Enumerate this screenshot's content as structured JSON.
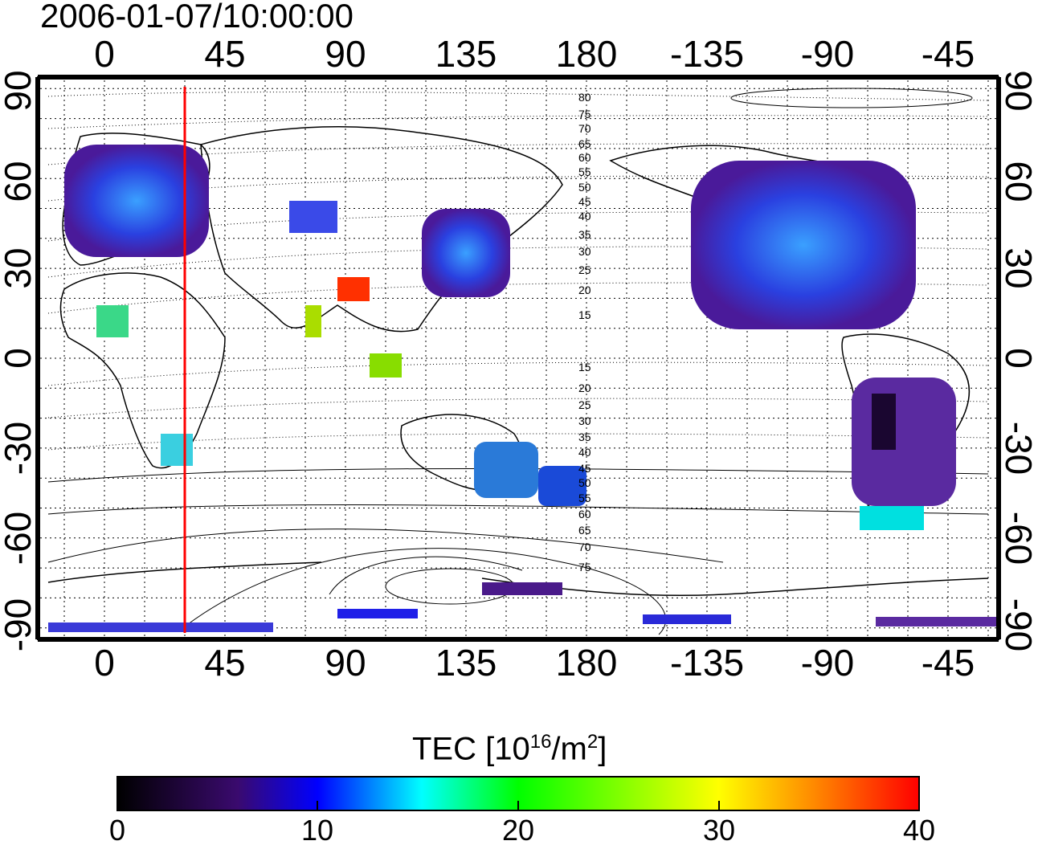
{
  "title": "2006-01-07/10:00:00",
  "map": {
    "top_lon_labels": [
      "0",
      "45",
      "90",
      "135",
      "180",
      "-135",
      "-90",
      "-45"
    ],
    "bottom_lon_labels": [
      "0",
      "45",
      "90",
      "135",
      "180",
      "-135",
      "-90",
      "-45"
    ],
    "left_lat_labels": [
      "90",
      "60",
      "30",
      "0",
      "-30",
      "-60",
      "-90"
    ],
    "right_lat_labels": [
      "90",
      "60",
      "30",
      "0",
      "-30",
      "-60",
      "-90"
    ],
    "contour_labels": [
      "80",
      "75",
      "70",
      "65",
      "60",
      "55",
      "50",
      "45",
      "40",
      "35",
      "30",
      "25",
      "20",
      "15",
      "15",
      "20",
      "25",
      "30",
      "35",
      "40",
      "45",
      "50",
      "55",
      "60",
      "65",
      "70",
      "75"
    ],
    "meridian_marker_lon": 30,
    "meridian_marker_color": "#ff0000"
  },
  "colorbar": {
    "label_main": "TEC  [10",
    "label_sup1": "16",
    "label_mid": "/m",
    "label_sup2": "2",
    "label_end": "]",
    "ticks": [
      "0",
      "10",
      "20",
      "30",
      "40"
    ],
    "min": 0,
    "max": 40,
    "colors": [
      "#000000",
      "#3a0a6e",
      "#0000ff",
      "#00ffff",
      "#00ff00",
      "#ffff00",
      "#ff8800",
      "#ff0000"
    ]
  }
}
